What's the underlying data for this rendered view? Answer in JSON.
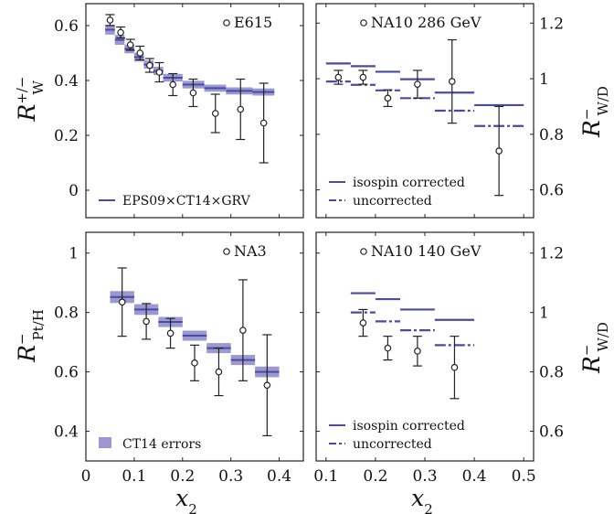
{
  "figure": {
    "colors": {
      "band": "#9c98d0",
      "line": "#4b4aa3",
      "error": "#222222",
      "frame": "#222222"
    },
    "x_title": {
      "main": "x",
      "sub": "2"
    }
  },
  "chart_data": [
    {
      "id": "E615",
      "type": "scatter",
      "annotation": "E615",
      "ylabel": {
        "main": "R",
        "sup": "+/−",
        "sub": "W"
      },
      "ylabel_side": "left",
      "xlim": [
        0,
        0.45
      ],
      "ylim": [
        -0.1,
        0.68
      ],
      "xticks": [
        0,
        0.1,
        0.2,
        0.3,
        0.4
      ],
      "xtick_labels": [
        "0",
        "0.1",
        "0.2",
        "0.3",
        "0.4"
      ],
      "yticks": [
        0,
        0.2,
        0.4,
        0.6
      ],
      "ytick_labels": [
        "0",
        "0.2",
        "0.4",
        "0.6"
      ],
      "show_xtick_labels": false,
      "legend": [
        {
          "kind": "line",
          "label": "EPS09×CT14×GRV"
        }
      ],
      "legend_position": "bottom-left",
      "data": [
        {
          "x": 0.05,
          "y": 0.62,
          "lo": 0.6,
          "hi": 0.64
        },
        {
          "x": 0.072,
          "y": 0.575,
          "lo": 0.555,
          "hi": 0.595
        },
        {
          "x": 0.092,
          "y": 0.53,
          "lo": 0.51,
          "hi": 0.55
        },
        {
          "x": 0.112,
          "y": 0.5,
          "lo": 0.475,
          "hi": 0.525
        },
        {
          "x": 0.132,
          "y": 0.455,
          "lo": 0.43,
          "hi": 0.48
        },
        {
          "x": 0.152,
          "y": 0.43,
          "lo": 0.395,
          "hi": 0.465
        },
        {
          "x": 0.18,
          "y": 0.385,
          "lo": 0.345,
          "hi": 0.425
        },
        {
          "x": 0.222,
          "y": 0.355,
          "lo": 0.305,
          "hi": 0.405
        },
        {
          "x": 0.268,
          "y": 0.28,
          "lo": 0.21,
          "hi": 0.35
        },
        {
          "x": 0.32,
          "y": 0.295,
          "lo": 0.185,
          "hi": 0.405
        },
        {
          "x": 0.368,
          "y": 0.245,
          "lo": 0.1,
          "hi": 0.39
        }
      ],
      "bins": [
        {
          "x0": 0.04,
          "x1": 0.06,
          "y": 0.585,
          "band": 0.018
        },
        {
          "x0": 0.06,
          "x1": 0.08,
          "y": 0.548,
          "band": 0.018
        },
        {
          "x0": 0.08,
          "x1": 0.1,
          "y": 0.515,
          "band": 0.016
        },
        {
          "x0": 0.1,
          "x1": 0.12,
          "y": 0.485,
          "band": 0.016
        },
        {
          "x0": 0.12,
          "x1": 0.14,
          "y": 0.458,
          "band": 0.015
        },
        {
          "x0": 0.14,
          "x1": 0.16,
          "y": 0.435,
          "band": 0.015
        },
        {
          "x0": 0.16,
          "x1": 0.2,
          "y": 0.41,
          "band": 0.014
        },
        {
          "x0": 0.2,
          "x1": 0.245,
          "y": 0.385,
          "band": 0.014
        },
        {
          "x0": 0.245,
          "x1": 0.29,
          "y": 0.372,
          "band": 0.013
        },
        {
          "x0": 0.29,
          "x1": 0.345,
          "y": 0.362,
          "band": 0.013
        },
        {
          "x0": 0.345,
          "x1": 0.39,
          "y": 0.358,
          "band": 0.013
        }
      ]
    },
    {
      "id": "NA10-286",
      "type": "scatter",
      "annotation": "NA10 286 GeV",
      "ylabel": {
        "main": "R",
        "sup": "−",
        "sub": "W/D"
      },
      "ylabel_side": "right",
      "xlim": [
        0.08,
        0.52
      ],
      "ylim": [
        0.5,
        1.27
      ],
      "xticks": [
        0.1,
        0.2,
        0.3,
        0.4,
        0.5
      ],
      "xtick_labels": [
        "0.1",
        "0.2",
        "0.3",
        "0.4",
        "0.5"
      ],
      "yticks": [
        0.6,
        0.8,
        1,
        1.2
      ],
      "ytick_labels": [
        "0.6",
        "0.8",
        "1",
        "1.2"
      ],
      "show_xtick_labels": false,
      "legend": [
        {
          "kind": "line",
          "label": "isospin corrected"
        },
        {
          "kind": "dash",
          "label": "uncorrected"
        }
      ],
      "legend_position": "bottom-left",
      "data": [
        {
          "x": 0.125,
          "y": 1.005,
          "lo": 0.98,
          "hi": 1.03
        },
        {
          "x": 0.175,
          "y": 1.005,
          "lo": 0.98,
          "hi": 1.03
        },
        {
          "x": 0.225,
          "y": 0.93,
          "lo": 0.9,
          "hi": 0.96
        },
        {
          "x": 0.285,
          "y": 0.98,
          "lo": 0.93,
          "hi": 1.03
        },
        {
          "x": 0.355,
          "y": 0.99,
          "lo": 0.84,
          "hi": 1.14
        },
        {
          "x": 0.45,
          "y": 0.74,
          "lo": 0.58,
          "hi": 0.9
        }
      ],
      "corrected": [
        {
          "x0": 0.1,
          "x1": 0.15,
          "y": 1.055
        },
        {
          "x0": 0.15,
          "x1": 0.2,
          "y": 1.045
        },
        {
          "x0": 0.2,
          "x1": 0.25,
          "y": 1.025
        },
        {
          "x0": 0.25,
          "x1": 0.32,
          "y": 0.998
        },
        {
          "x0": 0.32,
          "x1": 0.4,
          "y": 0.95
        },
        {
          "x0": 0.4,
          "x1": 0.5,
          "y": 0.905
        }
      ],
      "uncorrected": [
        {
          "x0": 0.1,
          "x1": 0.15,
          "y": 0.99
        },
        {
          "x0": 0.15,
          "x1": 0.2,
          "y": 0.978
        },
        {
          "x0": 0.2,
          "x1": 0.25,
          "y": 0.958
        },
        {
          "x0": 0.25,
          "x1": 0.32,
          "y": 0.93
        },
        {
          "x0": 0.32,
          "x1": 0.4,
          "y": 0.885
        },
        {
          "x0": 0.4,
          "x1": 0.5,
          "y": 0.83
        }
      ]
    },
    {
      "id": "NA3",
      "type": "scatter",
      "annotation": "NA3",
      "ylabel": {
        "main": "R",
        "sup": "−",
        "sub": "Pt/H"
      },
      "ylabel_side": "left",
      "xlim": [
        0,
        0.45
      ],
      "ylim": [
        0.3,
        1.07
      ],
      "xticks": [
        0,
        0.1,
        0.2,
        0.3,
        0.4
      ],
      "xtick_labels": [
        "0",
        "0.1",
        "0.2",
        "0.3",
        "0.4"
      ],
      "yticks": [
        0.4,
        0.6,
        0.8,
        1
      ],
      "ytick_labels": [
        "0.4",
        "0.6",
        "0.8",
        "1"
      ],
      "show_xtick_labels": true,
      "legend": [
        {
          "kind": "box",
          "label": "CT14 errors"
        }
      ],
      "legend_position": "bottom-left",
      "data": [
        {
          "x": 0.075,
          "y": 0.835,
          "lo": 0.72,
          "hi": 0.95
        },
        {
          "x": 0.125,
          "y": 0.77,
          "lo": 0.71,
          "hi": 0.83
        },
        {
          "x": 0.175,
          "y": 0.73,
          "lo": 0.68,
          "hi": 0.78
        },
        {
          "x": 0.225,
          "y": 0.63,
          "lo": 0.57,
          "hi": 0.69
        },
        {
          "x": 0.275,
          "y": 0.6,
          "lo": 0.52,
          "hi": 0.68
        },
        {
          "x": 0.325,
          "y": 0.74,
          "lo": 0.57,
          "hi": 0.91
        },
        {
          "x": 0.375,
          "y": 0.555,
          "lo": 0.385,
          "hi": 0.725
        }
      ],
      "bins": [
        {
          "x0": 0.05,
          "x1": 0.1,
          "y": 0.852,
          "band": 0.02
        },
        {
          "x0": 0.1,
          "x1": 0.15,
          "y": 0.81,
          "band": 0.018
        },
        {
          "x0": 0.15,
          "x1": 0.2,
          "y": 0.768,
          "band": 0.017
        },
        {
          "x0": 0.2,
          "x1": 0.25,
          "y": 0.722,
          "band": 0.017
        },
        {
          "x0": 0.25,
          "x1": 0.3,
          "y": 0.68,
          "band": 0.017
        },
        {
          "x0": 0.3,
          "x1": 0.35,
          "y": 0.64,
          "band": 0.017
        },
        {
          "x0": 0.35,
          "x1": 0.4,
          "y": 0.6,
          "band": 0.018
        }
      ]
    },
    {
      "id": "NA10-140",
      "type": "scatter",
      "annotation": "NA10 140 GeV",
      "ylabel": {
        "main": "R",
        "sup": "−",
        "sub": "W/D"
      },
      "ylabel_side": "right",
      "xlim": [
        0.08,
        0.52
      ],
      "ylim": [
        0.5,
        1.27
      ],
      "xticks": [
        0.1,
        0.2,
        0.3,
        0.4,
        0.5
      ],
      "xtick_labels": [
        "0.1",
        "0.2",
        "0.3",
        "0.4",
        "0.5"
      ],
      "yticks": [
        0.6,
        0.8,
        1,
        1.2
      ],
      "ytick_labels": [
        "0.6",
        "0.8",
        "1",
        "1.2"
      ],
      "show_xtick_labels": true,
      "legend": [
        {
          "kind": "line",
          "label": "isospin corrected"
        },
        {
          "kind": "dash",
          "label": "uncorrected"
        }
      ],
      "legend_position": "bottom-left",
      "data": [
        {
          "x": 0.175,
          "y": 0.965,
          "lo": 0.92,
          "hi": 1.01
        },
        {
          "x": 0.225,
          "y": 0.88,
          "lo": 0.84,
          "hi": 0.92
        },
        {
          "x": 0.285,
          "y": 0.87,
          "lo": 0.82,
          "hi": 0.92
        },
        {
          "x": 0.36,
          "y": 0.815,
          "lo": 0.71,
          "hi": 0.92
        }
      ],
      "corrected": [
        {
          "x0": 0.15,
          "x1": 0.2,
          "y": 1.065
        },
        {
          "x0": 0.2,
          "x1": 0.25,
          "y": 1.045
        },
        {
          "x0": 0.25,
          "x1": 0.32,
          "y": 1.01
        },
        {
          "x0": 0.32,
          "x1": 0.4,
          "y": 0.975
        }
      ],
      "uncorrected": [
        {
          "x0": 0.15,
          "x1": 0.2,
          "y": 1.0
        },
        {
          "x0": 0.2,
          "x1": 0.25,
          "y": 0.97
        },
        {
          "x0": 0.25,
          "x1": 0.32,
          "y": 0.94
        },
        {
          "x0": 0.32,
          "x1": 0.4,
          "y": 0.89
        }
      ]
    }
  ]
}
